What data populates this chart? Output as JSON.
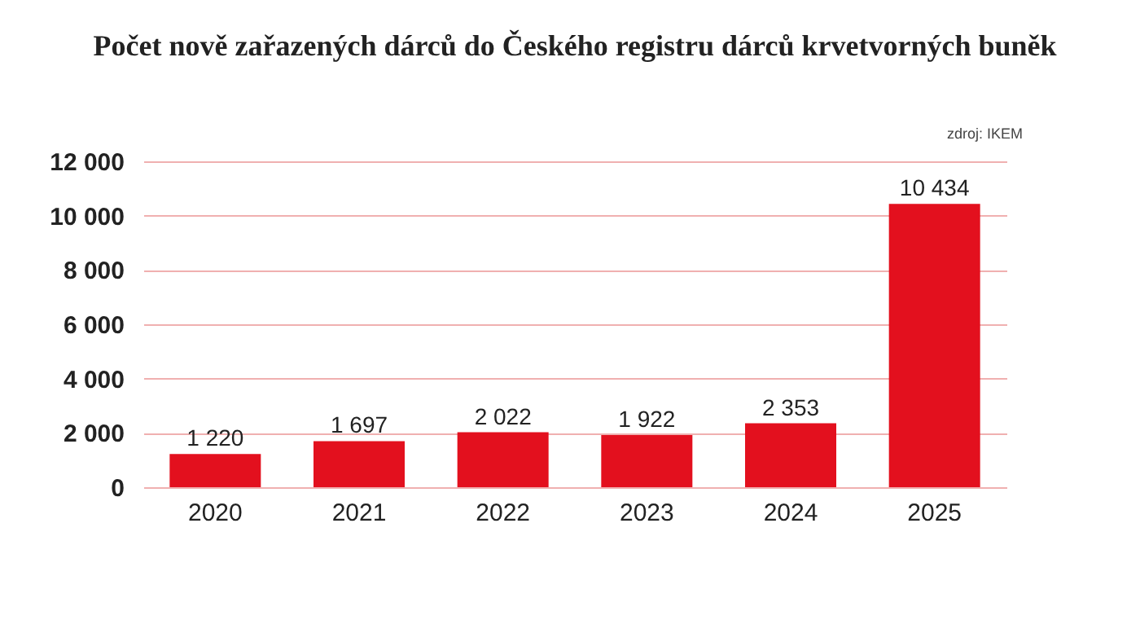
{
  "chart_data": {
    "type": "bar",
    "title": "Počet nově zařazených dárců do Českého registru dárců krvetvorných buněk",
    "annotations": [
      "zdroj: IKEM"
    ],
    "categories": [
      "2020",
      "2021",
      "2022",
      "2023",
      "2024",
      "2025"
    ],
    "values": [
      1220,
      1697,
      2022,
      1922,
      2353,
      10434
    ],
    "value_labels": [
      "1 220",
      "1 697",
      "2 022",
      "1 922",
      "2 353",
      "10 434"
    ],
    "color": "#e3101e",
    "ylim": [
      0,
      12000
    ],
    "yticks": [
      0,
      {
        "value": 2000,
        "label": "2 000"
      },
      {
        "value": 4000,
        "label": "4 000"
      },
      {
        "value": 6000,
        "label": "6 000"
      },
      {
        "value": 8000,
        "label": "8 000"
      },
      {
        "value": 10000,
        "label": "10 000"
      },
      {
        "value": 12000,
        "label": "12 000"
      }
    ],
    "grid": "y"
  }
}
